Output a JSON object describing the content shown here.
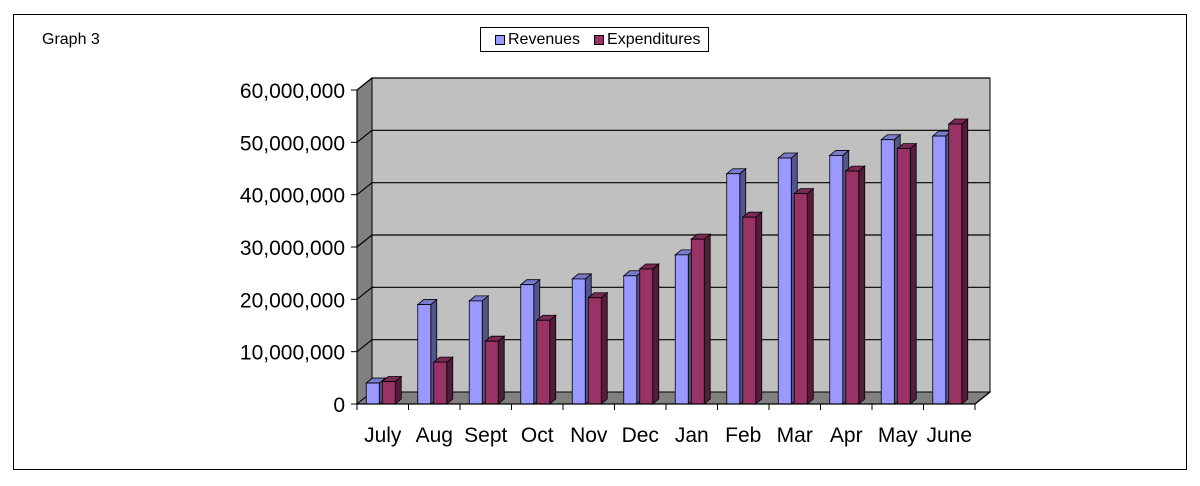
{
  "graph_label": "Graph 3",
  "legend": [
    {
      "label": "Revenues",
      "color": "#9999FF"
    },
    {
      "label": "Expenditures",
      "color": "#993366"
    }
  ],
  "chart_data": {
    "type": "bar",
    "title": "",
    "xlabel": "",
    "ylabel": "",
    "categories": [
      "July",
      "Aug",
      "Sept",
      "Oct",
      "Nov",
      "Dec",
      "Jan",
      "Feb",
      "Mar",
      "Apr",
      "May",
      "June"
    ],
    "series": [
      {
        "name": "Revenues",
        "color": "#9999FF",
        "values": [
          4000000,
          19000000,
          19700000,
          22800000,
          23900000,
          24500000,
          28500000,
          44000000,
          47000000,
          47500000,
          50500000,
          51200000
        ]
      },
      {
        "name": "Expenditures",
        "color": "#993366",
        "values": [
          4300000,
          8000000,
          12000000,
          16000000,
          20300000,
          25800000,
          31500000,
          35700000,
          40200000,
          44500000,
          48800000,
          53500000
        ]
      }
    ],
    "ylim": [
      0,
      60000000
    ],
    "yticks": [
      0,
      10000000,
      20000000,
      30000000,
      40000000,
      50000000,
      60000000
    ],
    "ytick_labels": [
      "0",
      "10,000,000",
      "20,000,000",
      "30,000,000",
      "40,000,000",
      "50,000,000",
      "60,000,000"
    ],
    "grid": true,
    "legend_position": "top"
  }
}
